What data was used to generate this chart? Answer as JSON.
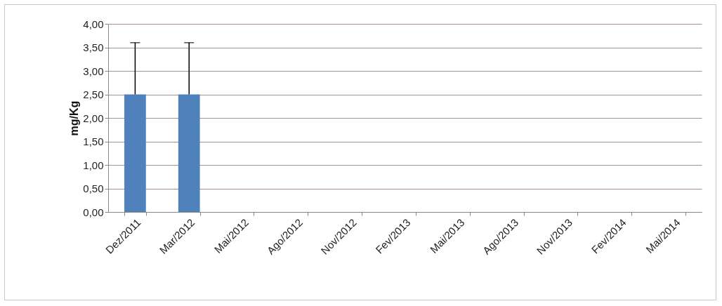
{
  "chart_data": {
    "type": "bar",
    "ylabel": "mg/Kg",
    "categories": [
      "Dez/2011",
      "Mar/2012",
      "Mai/2012",
      "Ago/2012",
      "Nov/2012",
      "Fev/2013",
      "Mai/2013",
      "Ago/2013",
      "Nov/2013",
      "Fev/2014",
      "Mai/2014"
    ],
    "values": [
      2.5,
      2.5,
      null,
      null,
      null,
      null,
      null,
      null,
      null,
      null,
      null
    ],
    "errors": [
      [
        2.5,
        3.6
      ],
      [
        2.5,
        3.6
      ],
      null,
      null,
      null,
      null,
      null,
      null,
      null,
      null,
      null
    ],
    "color": "#4f81bd",
    "ylim": [
      0,
      4
    ],
    "yticks": [
      {
        "value": 0,
        "label": "0,00"
      },
      {
        "value": 0.5,
        "label": "0,50"
      },
      {
        "value": 1,
        "label": "1,00"
      },
      {
        "value": 1.5,
        "label": "1,50"
      },
      {
        "value": 2,
        "label": "2,00"
      },
      {
        "value": 2.5,
        "label": "2,50"
      },
      {
        "value": 3,
        "label": "3,00"
      },
      {
        "value": 3.5,
        "label": "3,50"
      },
      {
        "value": 4,
        "label": "4,00"
      }
    ],
    "grid": "y"
  }
}
